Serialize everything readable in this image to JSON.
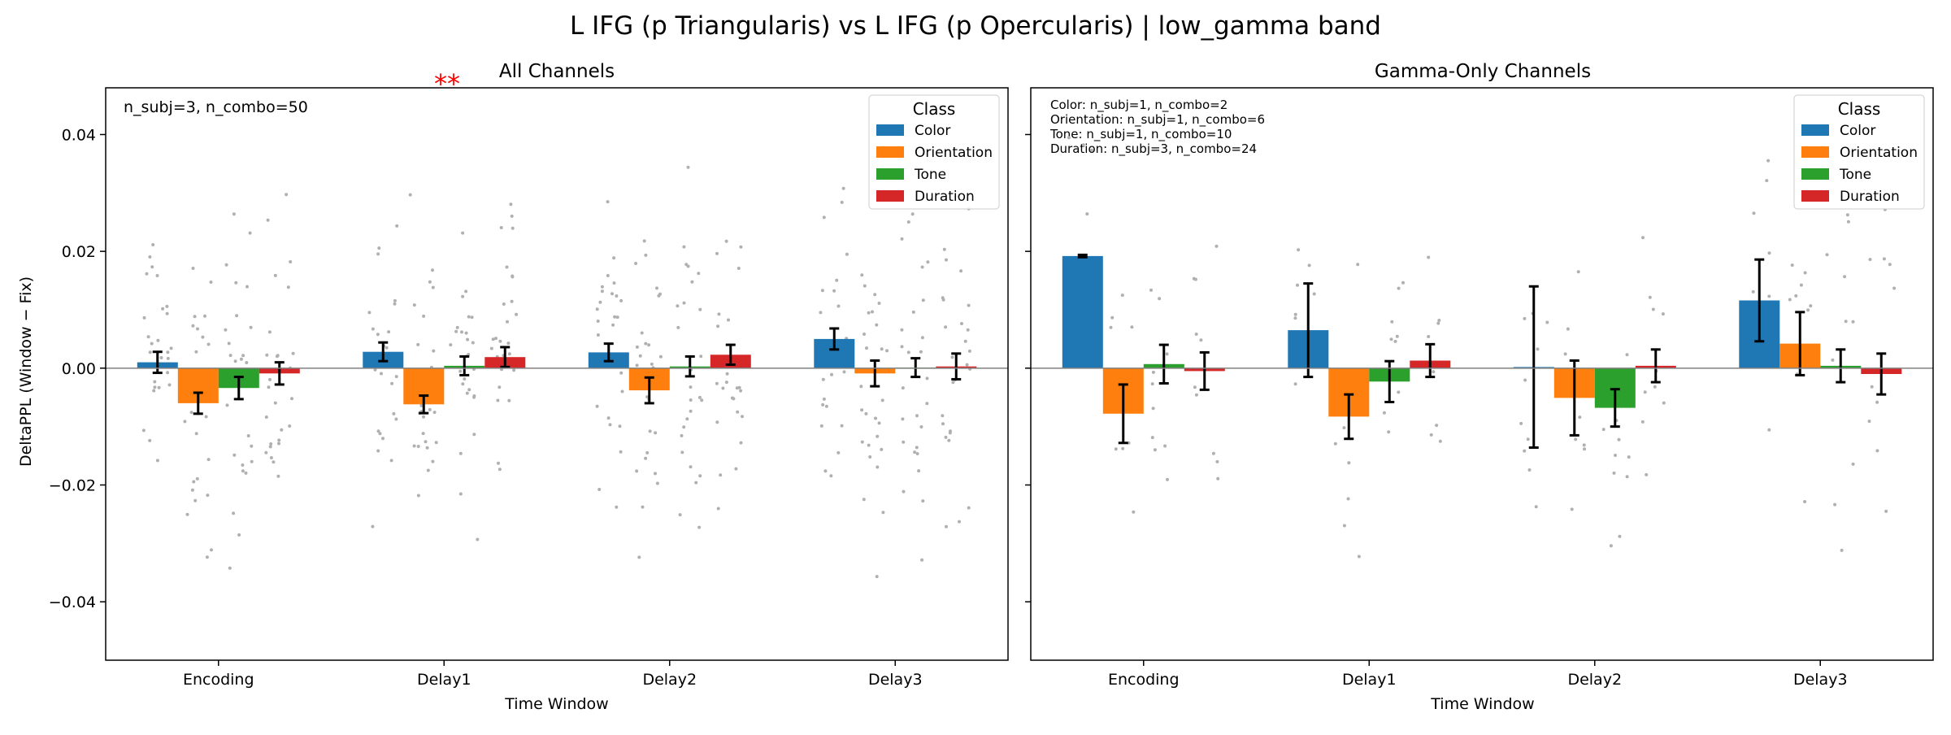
{
  "figure": {
    "title": "L IFG (p Triangularis) vs L IFG (p Opercularis)  |  low_gamma band",
    "ylabel": "DeltaPPL (Window − Fix)"
  },
  "colors": {
    "Color": "#1f77b4",
    "Orientation": "#ff7f0e",
    "Tone": "#2ca02c",
    "Duration": "#d62728",
    "significance": "#ff0000",
    "scatter": "#b0b0b0"
  },
  "chart_data": [
    {
      "type": "bar",
      "title": "All Channels",
      "xlabel": "Time Window",
      "ylabel": "DeltaPPL (Window − Fix)",
      "categories": [
        "Encoding",
        "Delay1",
        "Delay2",
        "Delay3"
      ],
      "ylim": [
        -0.05,
        0.048
      ],
      "yticks": [
        -0.04,
        -0.02,
        0.0,
        0.02,
        0.04
      ],
      "ytick_labels": [
        "−0.04",
        "−0.02",
        "0.00",
        "0.02",
        "0.04"
      ],
      "legend": {
        "title": "Class",
        "position": "top-right"
      },
      "annotation": [
        "n_subj=3, n_combo=50"
      ],
      "significance": [
        {
          "category": "Delay1",
          "label": "**"
        }
      ],
      "series": [
        {
          "name": "Color",
          "values": [
            0.001,
            0.0028,
            0.0027,
            0.005
          ],
          "errors": [
            0.0018,
            0.0016,
            0.0015,
            0.0018
          ]
        },
        {
          "name": "Orientation",
          "values": [
            -0.006,
            -0.0062,
            -0.0038,
            -0.0009
          ],
          "errors": [
            0.0018,
            0.0015,
            0.0022,
            0.0022
          ]
        },
        {
          "name": "Tone",
          "values": [
            -0.0034,
            0.0004,
            0.0003,
            0.0001
          ],
          "errors": [
            0.0019,
            0.0016,
            0.0017,
            0.0016
          ]
        },
        {
          "name": "Duration",
          "values": [
            -0.0009,
            0.0019,
            0.0023,
            0.0003
          ],
          "errors": [
            0.0019,
            0.0017,
            0.0017,
            0.0022
          ]
        }
      ]
    },
    {
      "type": "bar",
      "title": "Gamma-Only Channels",
      "xlabel": "Time Window",
      "categories": [
        "Encoding",
        "Delay1",
        "Delay2",
        "Delay3"
      ],
      "ylim": [
        -0.05,
        0.048
      ],
      "legend": {
        "title": "Class",
        "position": "top-right"
      },
      "annotation": [
        "Color: n_subj=1, n_combo=2",
        "Orientation: n_subj=1, n_combo=6",
        "Tone: n_subj=1, n_combo=10",
        "Duration: n_subj=3, n_combo=24"
      ],
      "series": [
        {
          "name": "Color",
          "values": [
            0.0192,
            0.0065,
            0.0002,
            0.0116
          ],
          "errors": [
            0.0002,
            0.008,
            0.0138,
            0.007
          ]
        },
        {
          "name": "Orientation",
          "values": [
            -0.0078,
            -0.0083,
            -0.0051,
            0.0042
          ],
          "errors": [
            0.005,
            0.0038,
            0.0064,
            0.0054
          ]
        },
        {
          "name": "Tone",
          "values": [
            0.0007,
            -0.0023,
            -0.0068,
            0.0004
          ],
          "errors": [
            0.0033,
            0.0035,
            0.0032,
            0.0028
          ]
        },
        {
          "name": "Duration",
          "values": [
            -0.0005,
            0.0013,
            0.0004,
            -0.001
          ],
          "errors": [
            0.0032,
            0.0028,
            0.0028,
            0.0035
          ]
        }
      ]
    }
  ]
}
